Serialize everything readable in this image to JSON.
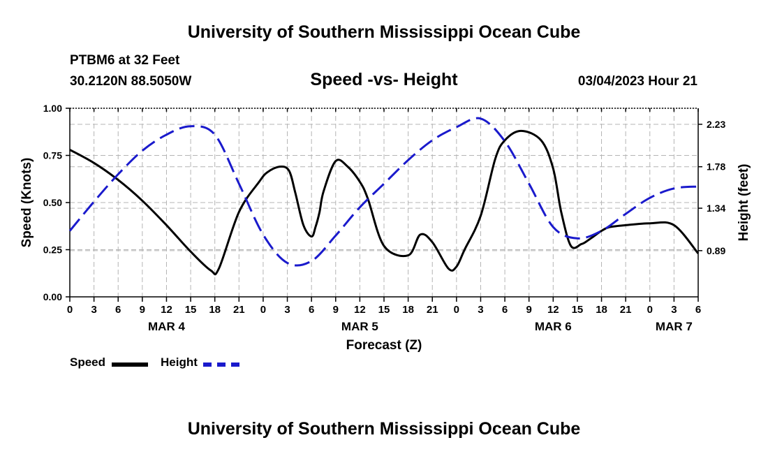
{
  "header": {
    "title": "University of Southern Mississippi Ocean Cube",
    "station": "PTBM6 at 32 Feet",
    "location": "30.2120N  88.5050W",
    "datetime": "03/04/2023 Hour 21",
    "footer_title": "University of Southern Mississippi Ocean Cube"
  },
  "legend": {
    "speed_label": "Speed",
    "height_label": "Height"
  },
  "colors": {
    "speed": "#000000",
    "height": "#1a1acc",
    "grid": "#b4b4b4"
  },
  "chart_data": {
    "type": "line",
    "title": "Speed -vs- Height",
    "xlabel": "Forecast (Z)",
    "ylabel": "Speed (Knots)",
    "y2label": "Height (feet)",
    "xlim": [
      0,
      78
    ],
    "ylim": [
      0,
      1
    ],
    "y2lim": [
      0.4,
      2.4
    ],
    "x_tick_values": [
      0,
      3,
      6,
      9,
      12,
      15,
      18,
      21,
      24,
      27,
      30,
      33,
      36,
      39,
      42,
      45,
      48,
      51,
      54,
      57,
      60,
      63,
      66,
      69,
      72,
      75,
      78
    ],
    "x_tick_labels": [
      "0",
      "3",
      "6",
      "9",
      "12",
      "15",
      "18",
      "21",
      "0",
      "3",
      "6",
      "9",
      "12",
      "15",
      "18",
      "21",
      "0",
      "3",
      "6",
      "9",
      "12",
      "15",
      "18",
      "21",
      "0",
      "3",
      "6"
    ],
    "y_ticks": [
      {
        "value": 0.0,
        "label": "0.00"
      },
      {
        "value": 0.25,
        "label": "0.25"
      },
      {
        "value": 0.5,
        "label": "0.50"
      },
      {
        "value": 0.75,
        "label": "0.75"
      },
      {
        "value": 1.0,
        "label": "1.00"
      }
    ],
    "y2_ticks": [
      {
        "value": 0.89,
        "label": "0.89"
      },
      {
        "value": 1.34,
        "label": "1.34"
      },
      {
        "value": 1.78,
        "label": "1.78"
      },
      {
        "value": 2.23,
        "label": "2.23"
      }
    ],
    "date_labels": [
      {
        "x": 12,
        "label": "MAR 4"
      },
      {
        "x": 36,
        "label": "MAR 5"
      },
      {
        "x": 60,
        "label": "MAR 6"
      },
      {
        "x": 75,
        "label": "MAR 7"
      }
    ],
    "series": [
      {
        "name": "Speed",
        "axis": "left",
        "style": "solid",
        "x": [
          0,
          3,
          6,
          9,
          12,
          15,
          17.5,
          18.5,
          21,
          23.5,
          24.5,
          26,
          27.2,
          28,
          29,
          30,
          30.5,
          31,
          31.5,
          33,
          34.5,
          36,
          37,
          39,
          42,
          43.5,
          45,
          47,
          48,
          49,
          51,
          52.8,
          54,
          56,
          58.5,
          60,
          61,
          62.2,
          63.5,
          64,
          65,
          66,
          67,
          69,
          72,
          75,
          78
        ],
        "y": [
          0.78,
          0.71,
          0.62,
          0.51,
          0.38,
          0.24,
          0.14,
          0.15,
          0.45,
          0.61,
          0.66,
          0.69,
          0.67,
          0.55,
          0.38,
          0.32,
          0.37,
          0.45,
          0.56,
          0.72,
          0.69,
          0.61,
          0.52,
          0.27,
          0.22,
          0.33,
          0.29,
          0.15,
          0.16,
          0.25,
          0.43,
          0.73,
          0.83,
          0.88,
          0.83,
          0.68,
          0.45,
          0.27,
          0.28,
          0.29,
          0.32,
          0.35,
          0.37,
          0.38,
          0.39,
          0.38,
          0.23
        ]
      },
      {
        "name": "Height",
        "axis": "right",
        "style": "dashed",
        "x": [
          0,
          3,
          6,
          9,
          12,
          15,
          18,
          21,
          24,
          27,
          30,
          33,
          36,
          39,
          42,
          45,
          48,
          51,
          54,
          57,
          60,
          63,
          66,
          69,
          72,
          75,
          78
        ],
        "y": [
          1.1,
          1.41,
          1.7,
          1.95,
          2.12,
          2.21,
          2.12,
          1.6,
          1.06,
          0.76,
          0.78,
          1.05,
          1.35,
          1.6,
          1.85,
          2.06,
          2.2,
          2.29,
          2.05,
          1.6,
          1.14,
          1.02,
          1.1,
          1.28,
          1.45,
          1.55,
          1.57
        ]
      }
    ]
  }
}
